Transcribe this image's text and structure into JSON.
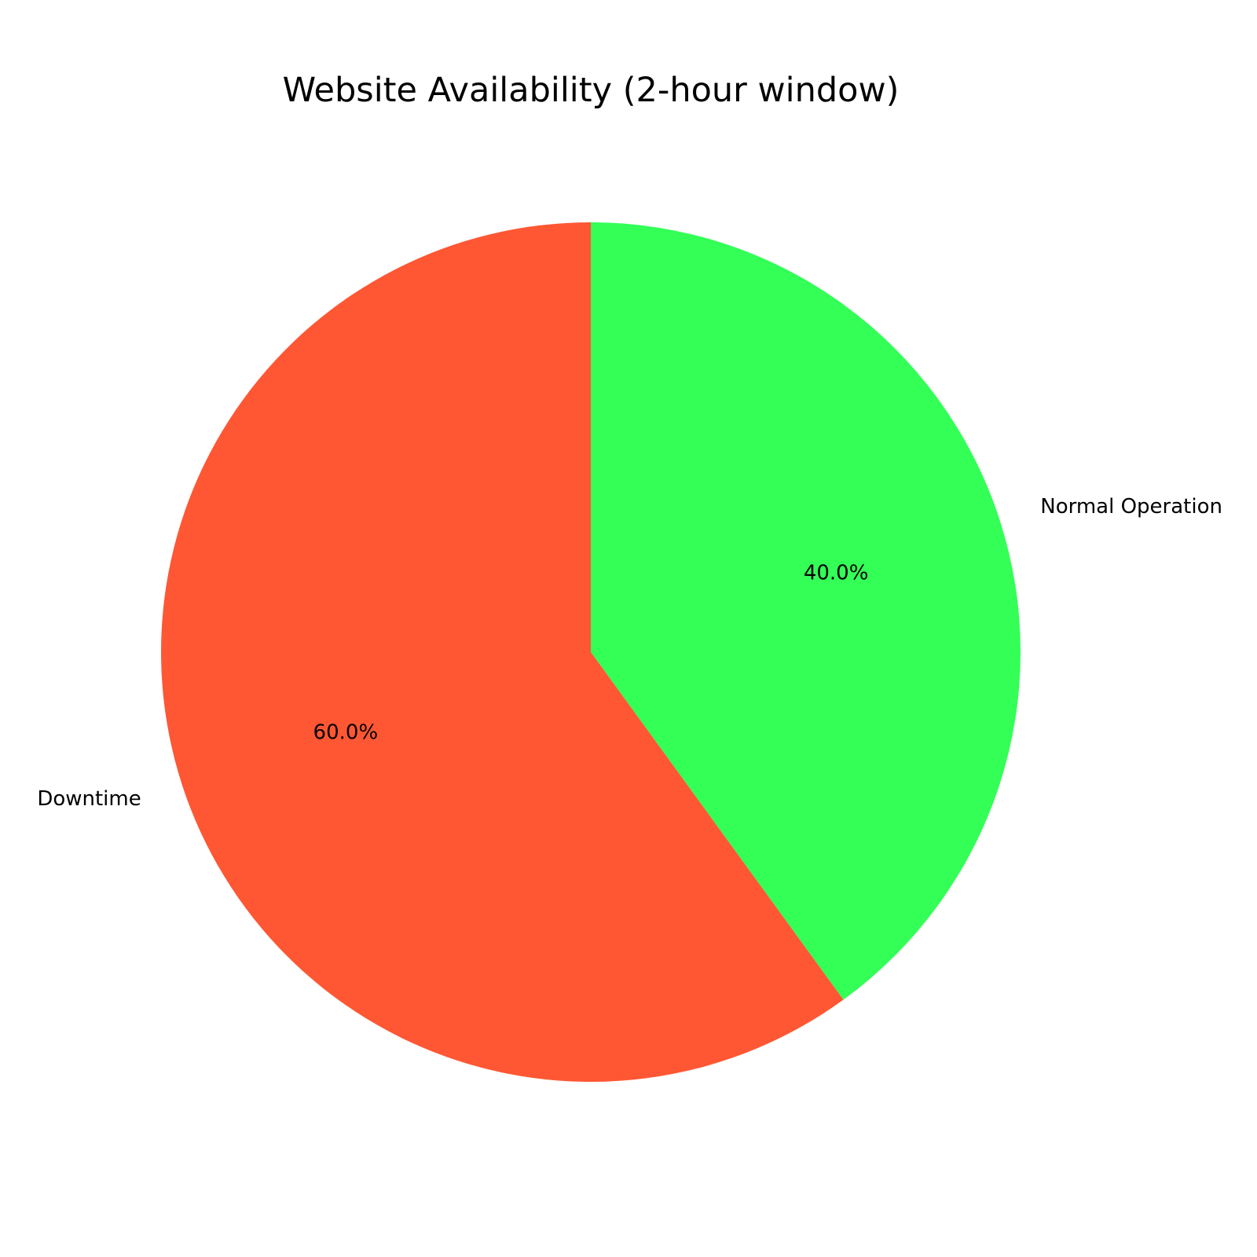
{
  "chart_data": {
    "type": "pie",
    "title": "Website Availability (2-hour window)",
    "slices": [
      {
        "label": "Normal Operation",
        "value": 40.0,
        "percent_label": "40.0%",
        "color": "#33FF57"
      },
      {
        "label": "Downtime",
        "value": 60.0,
        "percent_label": "60.0%",
        "color": "#FF5733"
      }
    ],
    "start_angle_deg": 90,
    "direction": "clockwise",
    "legend": "none"
  }
}
